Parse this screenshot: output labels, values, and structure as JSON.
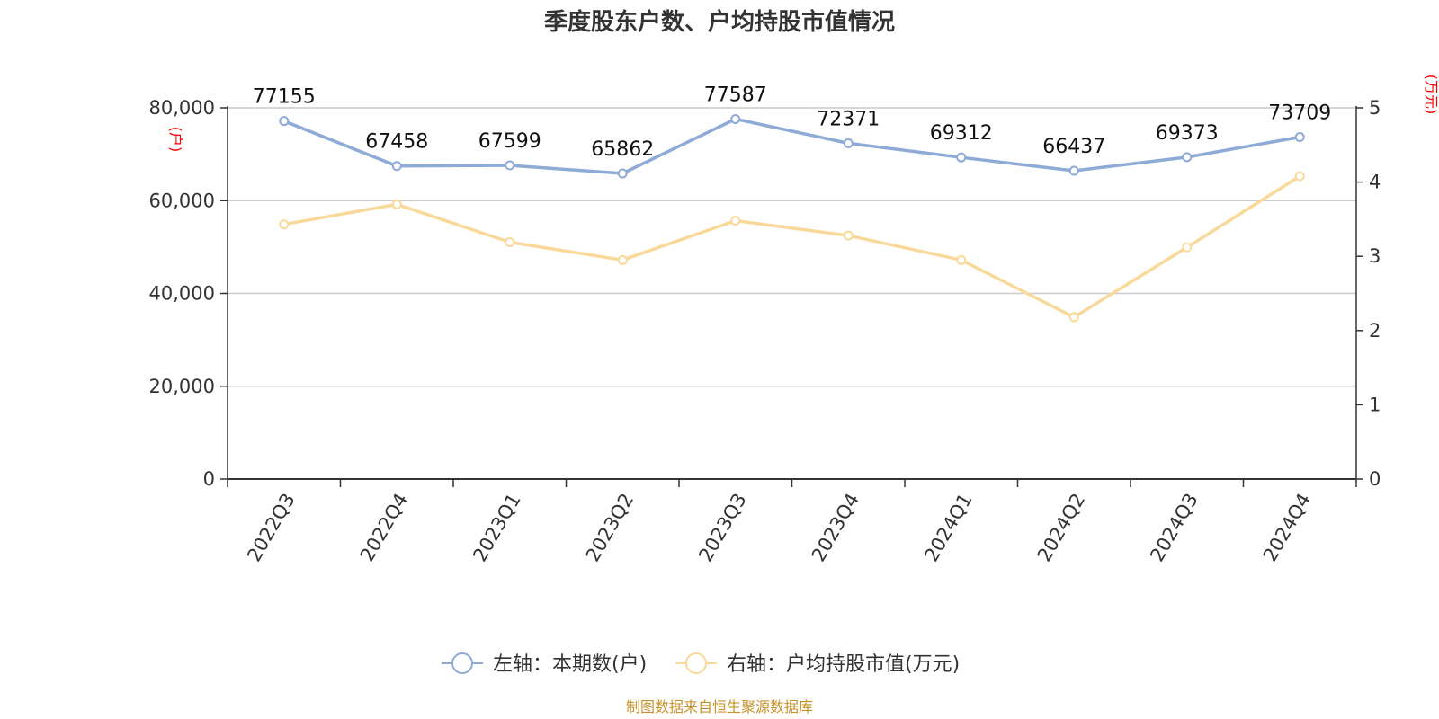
{
  "chart_data": {
    "type": "line",
    "title": "季度股东户数、户均持股市值情况",
    "categories": [
      "2022Q3",
      "2022Q4",
      "2023Q1",
      "2023Q2",
      "2023Q3",
      "2023Q4",
      "2024Q1",
      "2024Q2",
      "2024Q3",
      "2024Q4"
    ],
    "left_axis": {
      "unit": "(户)",
      "ylim": [
        0,
        80000
      ],
      "ticks": [
        0,
        20000,
        40000,
        60000,
        80000
      ],
      "tick_labels": [
        "0",
        "20,000",
        "40,000",
        "60,000",
        "80,000"
      ]
    },
    "right_axis": {
      "unit": "(万元)",
      "ylim": [
        0,
        5
      ],
      "ticks": [
        0,
        1,
        2,
        3,
        4,
        5
      ],
      "tick_labels": [
        "0",
        "1",
        "2",
        "3",
        "4",
        "5"
      ]
    },
    "grid": true,
    "legend_position": "bottom",
    "series": [
      {
        "name": "左轴：本期数(户)",
        "axis": "left",
        "color": "#8eaad6",
        "values": [
          77155,
          67458,
          67599,
          65862,
          77587,
          72371,
          69312,
          66437,
          69373,
          73709
        ],
        "data_labels": [
          "77155",
          "67458",
          "67599",
          "65862",
          "77587",
          "72371",
          "69312",
          "66437",
          "69373",
          "73709"
        ]
      },
      {
        "name": "右轴：户均持股市值(万元)",
        "axis": "right",
        "color": "#f9d99a",
        "values": [
          3.43,
          3.7,
          3.19,
          2.95,
          3.48,
          3.28,
          2.95,
          2.18,
          3.12,
          4.08
        ]
      }
    ]
  },
  "source": "制图数据来自恒生聚源数据库"
}
